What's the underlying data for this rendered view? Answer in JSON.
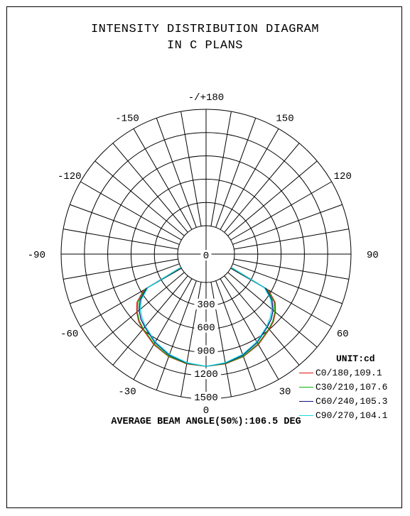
{
  "title_lines": [
    "INTENSITY DISTRIBUTION DIAGRAM",
    "IN C PLANS"
  ],
  "chart_data": {
    "type": "polar",
    "title": "INTENSITY DISTRIBUTION DIAGRAM IN C PLANS",
    "unit_label": "UNIT:cd",
    "angle_labels": [
      {
        "angle": 180,
        "text": "-/+180"
      },
      {
        "angle": 150,
        "text": "150"
      },
      {
        "angle": -150,
        "text": "-150"
      },
      {
        "angle": 120,
        "text": "120"
      },
      {
        "angle": -120,
        "text": "-120"
      },
      {
        "angle": 90,
        "text": "90"
      },
      {
        "angle": -90,
        "text": "-90"
      },
      {
        "angle": 60,
        "text": "60"
      },
      {
        "angle": -60,
        "text": "-60"
      },
      {
        "angle": 30,
        "text": "30"
      },
      {
        "angle": -30,
        "text": "-30"
      }
    ],
    "radial_labels": [
      "0",
      "300",
      "600",
      "900",
      "1200",
      "1500"
    ],
    "radial_values": [
      0,
      300,
      600,
      900,
      1200,
      1500
    ],
    "bottom_label": "0",
    "r_range": [
      0,
      1500
    ],
    "series": [
      {
        "name": "C0/180,109.1",
        "color": "#e01010",
        "angles": [
          0,
          10,
          20,
          30,
          40,
          45,
          50,
          55,
          60,
          62
        ],
        "values": [
          1080,
          1070,
          1040,
          980,
          900,
          860,
          800,
          720,
          560,
          0
        ]
      },
      {
        "name": "C30/210,107.6",
        "color": "#10b010",
        "angles": [
          0,
          10,
          20,
          30,
          40,
          45,
          50,
          55,
          60,
          62
        ],
        "values": [
          1080,
          1065,
          1035,
          970,
          890,
          850,
          790,
          700,
          540,
          0
        ]
      },
      {
        "name": "C60/240,105.3",
        "color": "#101080",
        "angles": [
          0,
          10,
          20,
          30,
          40,
          45,
          50,
          55,
          60,
          62
        ],
        "values": [
          1080,
          1060,
          1020,
          950,
          860,
          820,
          760,
          670,
          520,
          0
        ]
      },
      {
        "name": "C90/270,104.1",
        "color": "#10d8e0",
        "angles": [
          0,
          10,
          20,
          30,
          40,
          45,
          50,
          55,
          60,
          62
        ],
        "values": [
          1080,
          1055,
          1010,
          940,
          850,
          800,
          740,
          650,
          500,
          0
        ]
      }
    ]
  },
  "beam_text": "AVERAGE BEAM ANGLE(50%):106.5 DEG"
}
